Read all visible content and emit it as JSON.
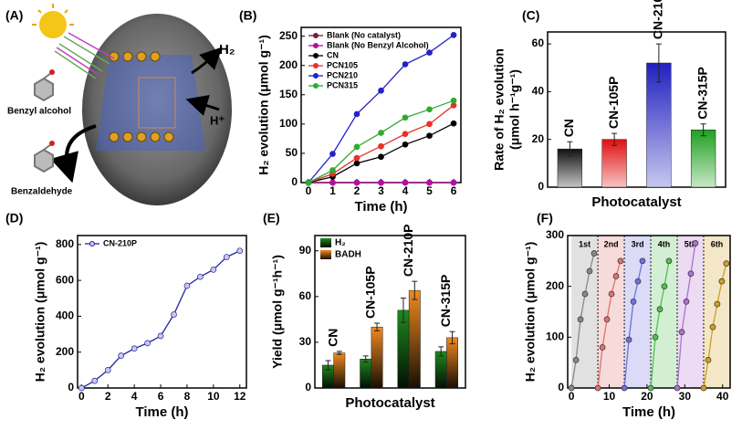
{
  "diagram": {
    "panel_label": "(A)",
    "h2": "H₂",
    "h_plus": "H⁺",
    "reactant": "Benzyl alcohol",
    "product": "Benzaldehyde"
  },
  "chart_data": [
    {
      "panel_label": "(B)",
      "type": "line",
      "xlabel": "Time (h)",
      "ylabel": "H₂ evolution (μmol g⁻¹)",
      "x": [
        0,
        1,
        2,
        3,
        4,
        5,
        6
      ],
      "xlim": [
        -0.3,
        6.3
      ],
      "xticks": [
        0,
        1,
        2,
        3,
        4,
        5,
        6
      ],
      "ylim": [
        0,
        265
      ],
      "yticks": [
        0,
        50,
        100,
        150,
        200,
        250
      ],
      "legend": "upper left",
      "series": [
        {
          "name": "Blank (No catalyst)",
          "color": "#7a1f3d",
          "values": [
            0,
            0,
            0,
            0,
            0,
            0,
            0
          ]
        },
        {
          "name": "Blank (No Benzyl Alcohol)",
          "color": "#b0129e",
          "values": [
            0,
            0,
            0,
            0,
            0,
            0,
            0
          ]
        },
        {
          "name": "CN",
          "color": "#000000",
          "values": [
            0,
            10,
            33,
            44,
            65,
            80,
            101
          ]
        },
        {
          "name": "PCN105",
          "color": "#e8302a",
          "values": [
            0,
            15,
            42,
            62,
            83,
            100,
            132
          ]
        },
        {
          "name": "PCN210",
          "color": "#2222c8",
          "values": [
            0,
            49,
            117,
            157,
            202,
            222,
            252
          ]
        },
        {
          "name": "PCN315",
          "color": "#2faa2f",
          "values": [
            0,
            21,
            61,
            85,
            111,
            125,
            140
          ]
        }
      ]
    },
    {
      "panel_label": "(C)",
      "type": "bar",
      "xlabel": "Photocatalyst",
      "ylabel": [
        "Rate of H₂ evolution",
        "(μmol h⁻¹g⁻¹)"
      ],
      "categories": [
        "CN",
        "CN-105P",
        "CN-210P",
        "CN-315P"
      ],
      "ylim": [
        0,
        65
      ],
      "yticks": [
        0,
        20,
        40,
        60
      ],
      "gradient": "lighter",
      "series": [
        {
          "colors": [
            "#111111",
            "#e01010",
            "#2020c0",
            "#20a020"
          ],
          "values": [
            16,
            20,
            52,
            24
          ],
          "errors": [
            3,
            2.5,
            8,
            2.5
          ]
        }
      ]
    },
    {
      "panel_label": "(D)",
      "type": "line",
      "xlabel": "Time (h)",
      "ylabel": "H₂ evolution (μmol g⁻¹)",
      "x": [
        0,
        1,
        2,
        3,
        4,
        5,
        6,
        7,
        8,
        9,
        10,
        11,
        12
      ],
      "xlim": [
        -0.3,
        12.5
      ],
      "xticks": [
        0,
        2,
        4,
        6,
        8,
        10,
        12
      ],
      "ylim": [
        0,
        850
      ],
      "yticks": [
        0,
        200,
        400,
        600,
        800
      ],
      "legend": "upper left",
      "marker_fill": "#c8c8f0",
      "series": [
        {
          "name": "CN-210P",
          "color": "#2222a0",
          "values": [
            0,
            40,
            100,
            180,
            220,
            250,
            290,
            410,
            570,
            620,
            660,
            730,
            765
          ]
        }
      ]
    },
    {
      "panel_label": "(E)",
      "type": "bar",
      "xlabel": "Photocatalyst",
      "ylabel": "Yield (μmol g⁻¹h⁻¹)",
      "categories": [
        "CN",
        "CN-105P",
        "CN-210P",
        "CN-315P"
      ],
      "ylim": [
        0,
        100
      ],
      "yticks": [
        0,
        30,
        60,
        90
      ],
      "gradient": "darker",
      "legend": "upper left",
      "series": [
        {
          "name": "H₂",
          "color": "#1f8a1f",
          "values": [
            15,
            19,
            51,
            24
          ],
          "errors": [
            3,
            2,
            8,
            3
          ]
        },
        {
          "name": "BADH",
          "color": "#f08a20",
          "values": [
            23,
            40,
            64,
            33
          ],
          "errors": [
            1,
            2.5,
            6,
            4
          ]
        }
      ]
    },
    {
      "panel_label": "(F)",
      "type": "line",
      "xlabel": "Time (h)",
      "ylabel": "H₂ evolution (μmol g⁻¹)",
      "xlim": [
        -1,
        42
      ],
      "xticks": [
        0,
        10,
        20,
        30,
        40
      ],
      "ylim": [
        0,
        300
      ],
      "yticks": [
        0,
        100,
        200,
        300
      ],
      "bands": true,
      "series": [
        {
          "name": "1st",
          "color": "#888888",
          "x": [
            0,
            1.2,
            2.4,
            3.6,
            4.8,
            6
          ],
          "values": [
            0,
            55,
            135,
            185,
            230,
            265
          ]
        },
        {
          "name": "2nd",
          "color": "#e07070",
          "x": [
            7,
            8.2,
            9.4,
            10.6,
            11.8,
            13
          ],
          "values": [
            0,
            80,
            135,
            185,
            220,
            250
          ]
        },
        {
          "name": "3rd",
          "color": "#7070e0",
          "x": [
            14,
            15.2,
            16.4,
            17.6,
            18.8
          ],
          "values": [
            0,
            95,
            170,
            210,
            250
          ]
        },
        {
          "name": "4th",
          "color": "#50c050",
          "x": [
            21,
            22.2,
            23.4,
            24.6,
            25.8
          ],
          "values": [
            0,
            100,
            155,
            200,
            250
          ]
        },
        {
          "name": "5th",
          "color": "#b070d0",
          "x": [
            28,
            29.2,
            30.4,
            31.6,
            32.8
          ],
          "values": [
            0,
            110,
            170,
            225,
            285
          ]
        },
        {
          "name": "6th",
          "color": "#d0a020",
          "x": [
            35,
            36.2,
            37.4,
            38.6,
            39.8,
            41
          ],
          "values": [
            0,
            55,
            120,
            165,
            210,
            245
          ]
        }
      ]
    }
  ]
}
